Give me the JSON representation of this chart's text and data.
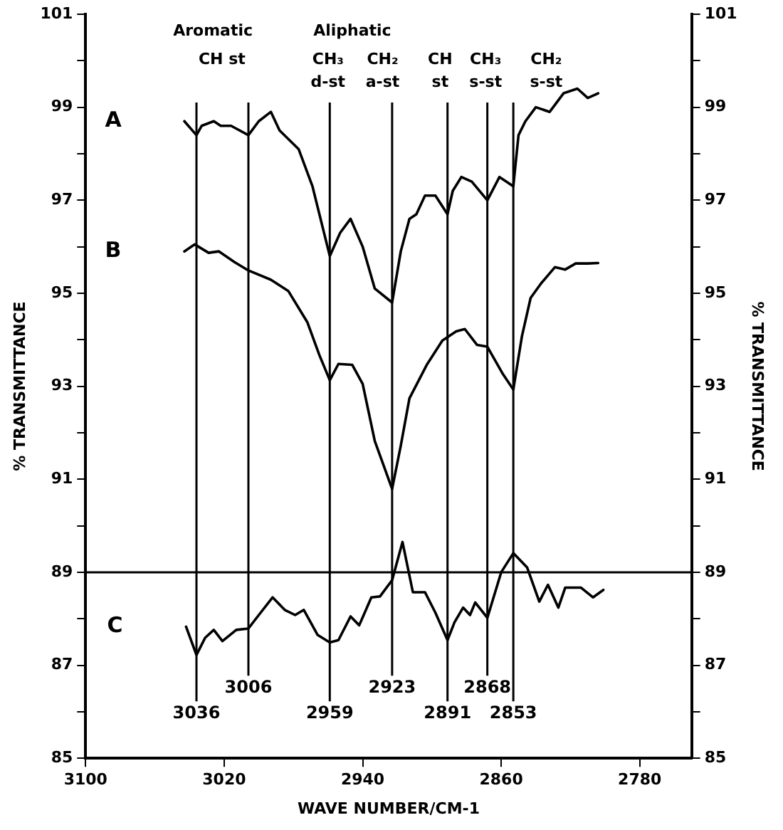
{
  "chart_data": {
    "type": "line",
    "xlabel": "WAVE NUMBER/CM-1",
    "ylabel": "% TRANSMITTANCE",
    "y2label": "% TRANSMITTANCE",
    "xlim": [
      3100,
      2750
    ],
    "xticks": [
      3100,
      3020,
      2940,
      2860,
      2780
    ],
    "ylim": [
      85,
      101
    ],
    "yticks": [
      85,
      {
        "value": 86,
        "label": null
      },
      87,
      {
        "value": 88,
        "label": null
      },
      89,
      {
        "value": 90,
        "label": null
      },
      91,
      {
        "value": 92,
        "label": null
      },
      93,
      {
        "value": 94,
        "label": null
      },
      95,
      {
        "value": 96,
        "label": null
      },
      97,
      {
        "value": 98,
        "label": null
      },
      99,
      {
        "value": 100,
        "label": null
      },
      101
    ],
    "y2lim": [
      85,
      101
    ],
    "y2ticks": [
      85,
      {
        "value": 86,
        "label": null
      },
      87,
      {
        "value": 88,
        "label": null
      },
      89,
      {
        "value": 90,
        "label": null
      },
      91,
      {
        "value": 92,
        "label": null
      },
      93,
      {
        "value": 94,
        "label": null
      },
      95,
      {
        "value": 96,
        "label": null
      },
      97,
      {
        "value": 98,
        "label": null
      },
      99,
      {
        "value": 100,
        "label": null
      },
      101
    ],
    "marker": "none",
    "line_style": "solid",
    "series": [
      {
        "name": "A",
        "color": "#000000",
        "x": [
          3043,
          3036,
          3033,
          3026,
          3022,
          3016,
          3006,
          3000,
          2993,
          2988,
          2977,
          2969,
          2959,
          2953,
          2947,
          2940,
          2933,
          2923,
          2918,
          2913,
          2909,
          2904,
          2898,
          2891,
          2888,
          2883,
          2877,
          2868,
          2861,
          2853,
          2850,
          2846,
          2840,
          2832,
          2824,
          2816,
          2810,
          2804
        ],
        "values": [
          98.7,
          98.4,
          98.6,
          98.7,
          98.6,
          98.6,
          98.4,
          98.7,
          98.9,
          98.5,
          98.1,
          97.3,
          95.8,
          96.3,
          96.6,
          96.0,
          95.1,
          94.8,
          95.9,
          96.6,
          96.7,
          97.1,
          97.1,
          96.7,
          97.2,
          97.5,
          97.4,
          97.0,
          97.5,
          97.3,
          98.4,
          98.7,
          99.0,
          98.9,
          99.3,
          99.4,
          99.2,
          99.3
        ]
      },
      {
        "name": "B",
        "color": "#000000",
        "x": [
          3043,
          3037,
          3029,
          3023,
          3014,
          3006,
          2993,
          2983,
          2972,
          2965,
          2959,
          2954,
          2946,
          2940,
          2933,
          2923,
          2918,
          2913,
          2903,
          2894,
          2886,
          2881,
          2874,
          2868,
          2859,
          2853,
          2848,
          2843,
          2837,
          2829,
          2823,
          2817,
          2810,
          2804
        ],
        "values": [
          95.9,
          96.05,
          95.87,
          95.9,
          95.67,
          95.49,
          95.29,
          95.05,
          94.38,
          93.67,
          93.13,
          93.48,
          93.46,
          93.05,
          91.82,
          90.79,
          91.72,
          92.74,
          93.46,
          93.98,
          94.18,
          94.23,
          93.89,
          93.85,
          93.26,
          92.93,
          94.08,
          94.9,
          95.21,
          95.56,
          95.51,
          95.64,
          95.64,
          95.65
        ]
      },
      {
        "name": "C",
        "color": "#000000",
        "x": [
          3042,
          3036,
          3031,
          3026,
          3021,
          3013,
          3006,
          3000,
          2992,
          2985,
          2979,
          2974,
          2966,
          2959,
          2954,
          2947,
          2942,
          2935,
          2930,
          2923,
          2917,
          2911,
          2904,
          2898,
          2891,
          2887,
          2882,
          2878,
          2875,
          2868,
          2860,
          2853,
          2845,
          2838,
          2833,
          2827,
          2823,
          2814,
          2807,
          2801
        ],
        "values": [
          87.83,
          87.22,
          87.59,
          87.76,
          87.52,
          87.76,
          87.79,
          88.08,
          88.46,
          88.19,
          88.08,
          88.19,
          87.65,
          87.49,
          87.54,
          88.05,
          87.86,
          88.46,
          88.48,
          88.83,
          89.65,
          88.57,
          88.57,
          88.13,
          87.54,
          87.92,
          88.24,
          88.08,
          88.35,
          88.02,
          89.0,
          89.41,
          89.1,
          88.37,
          88.73,
          88.24,
          88.67,
          88.67,
          88.46,
          88.62
        ]
      }
    ],
    "ref_lines": [
      {
        "axis": "x",
        "value": 3036,
        "label": "3036"
      },
      {
        "axis": "x",
        "value": 3006,
        "label": "3006"
      },
      {
        "axis": "x",
        "value": 2959,
        "label": "2959"
      },
      {
        "axis": "x",
        "value": 2923,
        "label": "2923"
      },
      {
        "axis": "x",
        "value": 2891,
        "label": "2891"
      },
      {
        "axis": "x",
        "value": 2868,
        "label": "2868"
      },
      {
        "axis": "x",
        "value": 2853,
        "label": "2853"
      },
      {
        "axis": "y",
        "value": 89
      }
    ],
    "annotations": [
      "Aromatic",
      "Aliphatic",
      "CH st",
      "CH₃\nd-st",
      "CH₂\na-st",
      "CH\nst",
      "CH₃\ns-st",
      "CH₂\ns-st"
    ]
  }
}
